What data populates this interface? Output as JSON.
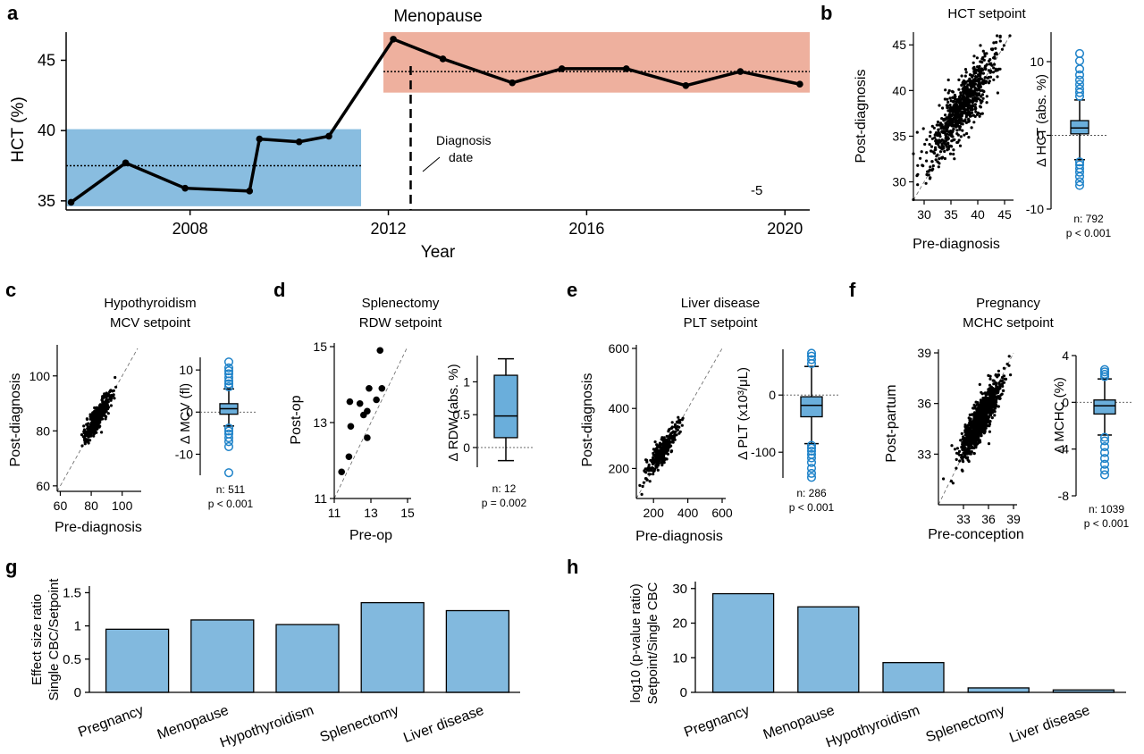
{
  "colors": {
    "blue": "#89bde0",
    "salmon": "#eeb09e",
    "outlier_blue": "#1f83c9",
    "box_fill": "#6aaedb",
    "bar_fill": "#82b9de"
  },
  "panel_labels": [
    "a",
    "b",
    "c",
    "d",
    "e",
    "f",
    "g",
    "h"
  ],
  "chart_data": [
    {
      "panel": "a",
      "type": "line",
      "title": "Menopause",
      "xlabel": "Year",
      "ylabel": "HCT (%)",
      "x_ticks": [
        "2008",
        "2012",
        "2016",
        "2020"
      ],
      "y_ticks": [
        "35",
        "40",
        "45"
      ],
      "xlim": [
        2005.5,
        2020.5
      ],
      "ylim": [
        34.8,
        47
      ],
      "x": [
        2005.6,
        2006.7,
        2007.9,
        2009.2,
        2009.4,
        2010.2,
        2010.8,
        2012.1,
        2013.1,
        2014.5,
        2015.5,
        2016.8,
        2018.0,
        2019.1,
        2020.3
      ],
      "y": [
        34.9,
        37.7,
        35.9,
        35.7,
        39.4,
        39.2,
        39.6,
        46.5,
        45.1,
        43.4,
        44.4,
        44.4,
        43.2,
        44.2,
        43.3
      ],
      "pre_band": [
        35,
        40.1
      ],
      "pre_setpoint": 37.5,
      "post_band": [
        42.7,
        47
      ],
      "post_setpoint": 44.2,
      "band_split_year": 2011.9,
      "diagnosis_year": 2012.45,
      "annotation": "Diagnosis\ndate",
      "corner_text": "-5"
    },
    {
      "panel": "b",
      "type": "scatter",
      "title": "HCT setpoint",
      "xlabel": "Pre-diagnosis",
      "ylabel": "Post-diagnosis",
      "ticks": [
        30,
        35,
        40,
        45
      ],
      "xlim": [
        28,
        46
      ],
      "ylim": [
        28,
        46
      ],
      "center": [
        37,
        38
      ],
      "spread": 3,
      "n_points": 792,
      "box": {
        "ylabel": "Δ HCT (abs. %)",
        "y_ticks": [
          -10,
          0,
          10
        ],
        "ylim": [
          -10,
          14
        ],
        "whisker_low": -3.3,
        "q1": 0.2,
        "median": 1.0,
        "q3": 2.0,
        "whisker_high": 4.8,
        "outliers_high": [
          5.3,
          5.8,
          6.3,
          6.9,
          7.5,
          8.2,
          9.0,
          10.1,
          11.1
        ],
        "outliers_low": [
          -3.6,
          -4.0,
          -4.5,
          -5.0,
          -5.6,
          -6.3,
          -6.8
        ],
        "stats": [
          "n: 792",
          "p < 0.001"
        ]
      }
    },
    {
      "panel": "c",
      "type": "scatter",
      "title": "Hypothyroidism\nMCV setpoint",
      "xlabel": "Pre-diagnosis",
      "ylabel": "Post-diagnosis",
      "ticks": [
        60,
        80,
        100
      ],
      "xlim": [
        58,
        110
      ],
      "ylim": [
        58,
        110
      ],
      "center": [
        84,
        85
      ],
      "spread": 4,
      "n_points": 511,
      "box": {
        "ylabel": "Δ MCV (fl)",
        "y_ticks": [
          -10,
          0,
          10
        ],
        "ylim": [
          -15,
          13
        ],
        "whisker_low": -3.3,
        "q1": -0.5,
        "median": 0.8,
        "q3": 2.0,
        "whisker_high": 5.5,
        "outliers_high": [
          6.0,
          6.7,
          7.4,
          8.2,
          9.1,
          9.8,
          10.5,
          11.9
        ],
        "outliers_low": [
          -3.8,
          -4.5,
          -5.2,
          -6.1,
          -7.0,
          -8.2,
          -14.4
        ],
        "stats": [
          "n: 511",
          "p < 0.001"
        ]
      }
    },
    {
      "panel": "d",
      "type": "scatter",
      "title": "Splenectomy\nRDW setpoint",
      "xlabel": "Pre-op",
      "ylabel": "Post-op",
      "ticks": [
        11,
        13,
        15
      ],
      "xlim": [
        11,
        15
      ],
      "ylim": [
        11,
        15
      ],
      "points": [
        [
          11.4,
          11.7
        ],
        [
          11.8,
          12.1
        ],
        [
          11.9,
          12.9
        ],
        [
          12.4,
          13.5
        ],
        [
          12.6,
          13.2
        ],
        [
          12.8,
          13.3
        ],
        [
          12.8,
          12.6
        ],
        [
          12.9,
          13.9
        ],
        [
          13.3,
          13.6
        ],
        [
          13.6,
          13.9
        ],
        [
          13.5,
          14.9
        ],
        [
          11.85,
          13.55
        ]
      ],
      "box": {
        "ylabel": "Δ RDW (abs. %)",
        "y_ticks": [
          0,
          0.5,
          1
        ],
        "ylim": [
          -0.3,
          1.4
        ],
        "whisker_low": -0.2,
        "q1": 0.15,
        "median": 0.48,
        "q3": 1.1,
        "whisker_high": 1.35,
        "outliers_high": [],
        "outliers_low": [],
        "stats": [
          "n: 12",
          "p = 0.002"
        ]
      }
    },
    {
      "panel": "e",
      "type": "scatter",
      "title": "Liver disease\nPLT setpoint",
      "xlabel": "Pre-diagnosis",
      "ylabel": "Post-diagnosis",
      "ticks": [
        200,
        400,
        600
      ],
      "xlim": [
        100,
        600
      ],
      "ylim": [
        100,
        600
      ],
      "center": [
        250,
        260
      ],
      "spread": 45,
      "n_points": 286,
      "box": {
        "ylabel": "Δ PLT (x10³/μL)",
        "y_ticks": [
          -100,
          0
        ],
        "ylim": [
          -145,
          80
        ],
        "whisker_low": -85,
        "q1": -38,
        "median": -18,
        "q3": -3,
        "whisker_high": 50,
        "outliers_high": [
          55,
          62,
          68,
          73
        ],
        "outliers_low": [
          -88,
          -93,
          -98,
          -104,
          -110,
          -118,
          -128,
          -137,
          -144
        ],
        "stats": [
          "n: 286",
          "p < 0.001"
        ]
      }
    },
    {
      "panel": "f",
      "type": "scatter",
      "title": "Pregnancy\nMCHC setpoint",
      "xlabel": "Pre-conception",
      "ylabel": "Post-partum",
      "ticks": [
        33,
        36,
        39
      ],
      "xlim": [
        30,
        39
      ],
      "ylim": [
        30,
        39
      ],
      "center": [
        35,
        35
      ],
      "spread": 1.1,
      "n_points": 1039,
      "box": {
        "ylabel": "Δ MCHC (%)",
        "y_ticks": [
          -8,
          -4,
          0,
          4
        ],
        "ylim": [
          -8,
          4
        ],
        "whisker_low": -2.8,
        "q1": -1.0,
        "median": -0.3,
        "q3": 0.2,
        "whisker_high": 2.0,
        "outliers_high": [
          2.2,
          2.4,
          2.6,
          2.8
        ],
        "outliers_low": [
          -3.0,
          -3.3,
          -3.8,
          -4.3,
          -4.8,
          -5.3,
          -5.8,
          -6.2
        ],
        "stats": [
          "n: 1039",
          "p < 0.001"
        ]
      }
    },
    {
      "panel": "g",
      "type": "bar",
      "ylabel": "Effect size ratio\nSingle CBC/Setpoint",
      "categories": [
        "Pregnancy",
        "Menopause",
        "Hypothyroidism",
        "Splenectomy",
        "Liver disease"
      ],
      "values": [
        0.95,
        1.09,
        1.02,
        1.35,
        1.23
      ],
      "y_ticks": [
        "0",
        "0.5",
        "1",
        "1.5"
      ],
      "ylim": [
        0,
        1.6
      ]
    },
    {
      "panel": "h",
      "type": "bar",
      "ylabel": "log10 (p-value ratio)\nSetpoint/Single CBC",
      "categories": [
        "Pregnancy",
        "Menopause",
        "Hypothyroidism",
        "Splenectomy",
        "Liver disease"
      ],
      "values": [
        28.5,
        24.7,
        8.6,
        1.3,
        0.7
      ],
      "y_ticks": [
        "0",
        "10",
        "20",
        "30"
      ],
      "ylim": [
        0,
        32
      ]
    }
  ]
}
